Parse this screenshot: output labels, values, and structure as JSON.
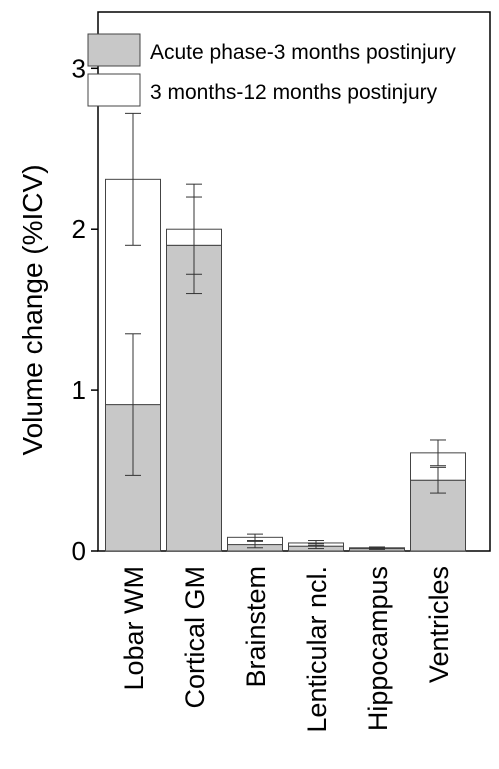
{
  "chart_data": {
    "type": "bar",
    "stacked": true,
    "title": "",
    "xlabel": "",
    "ylabel": "Volume change (%ICV)",
    "ylim": [
      0,
      3.35
    ],
    "yticks": [
      0,
      1,
      2,
      3
    ],
    "grid": false,
    "legend_position": "top-right",
    "categories": [
      "Lobar WM",
      "Cortical GM",
      "Brainstem",
      "Lenticular ncl.",
      "Hippocampus",
      "Ventricles"
    ],
    "series": [
      {
        "name": "Acute phase-3 months postinjury",
        "color": "#c8c8c8",
        "values": [
          0.91,
          1.9,
          0.04,
          0.03,
          0.015,
          0.44
        ],
        "error": [
          0.44,
          0.3,
          0.02,
          0.015,
          0.005,
          0.08
        ]
      },
      {
        "name": "3 months-12 months postinjury",
        "color": "#ffffff",
        "values": [
          1.4,
          0.1,
          0.045,
          0.02,
          0.005,
          0.17
        ],
        "error": [
          0.41,
          0.28,
          0.02,
          0.015,
          0.005,
          0.08
        ]
      }
    ]
  }
}
